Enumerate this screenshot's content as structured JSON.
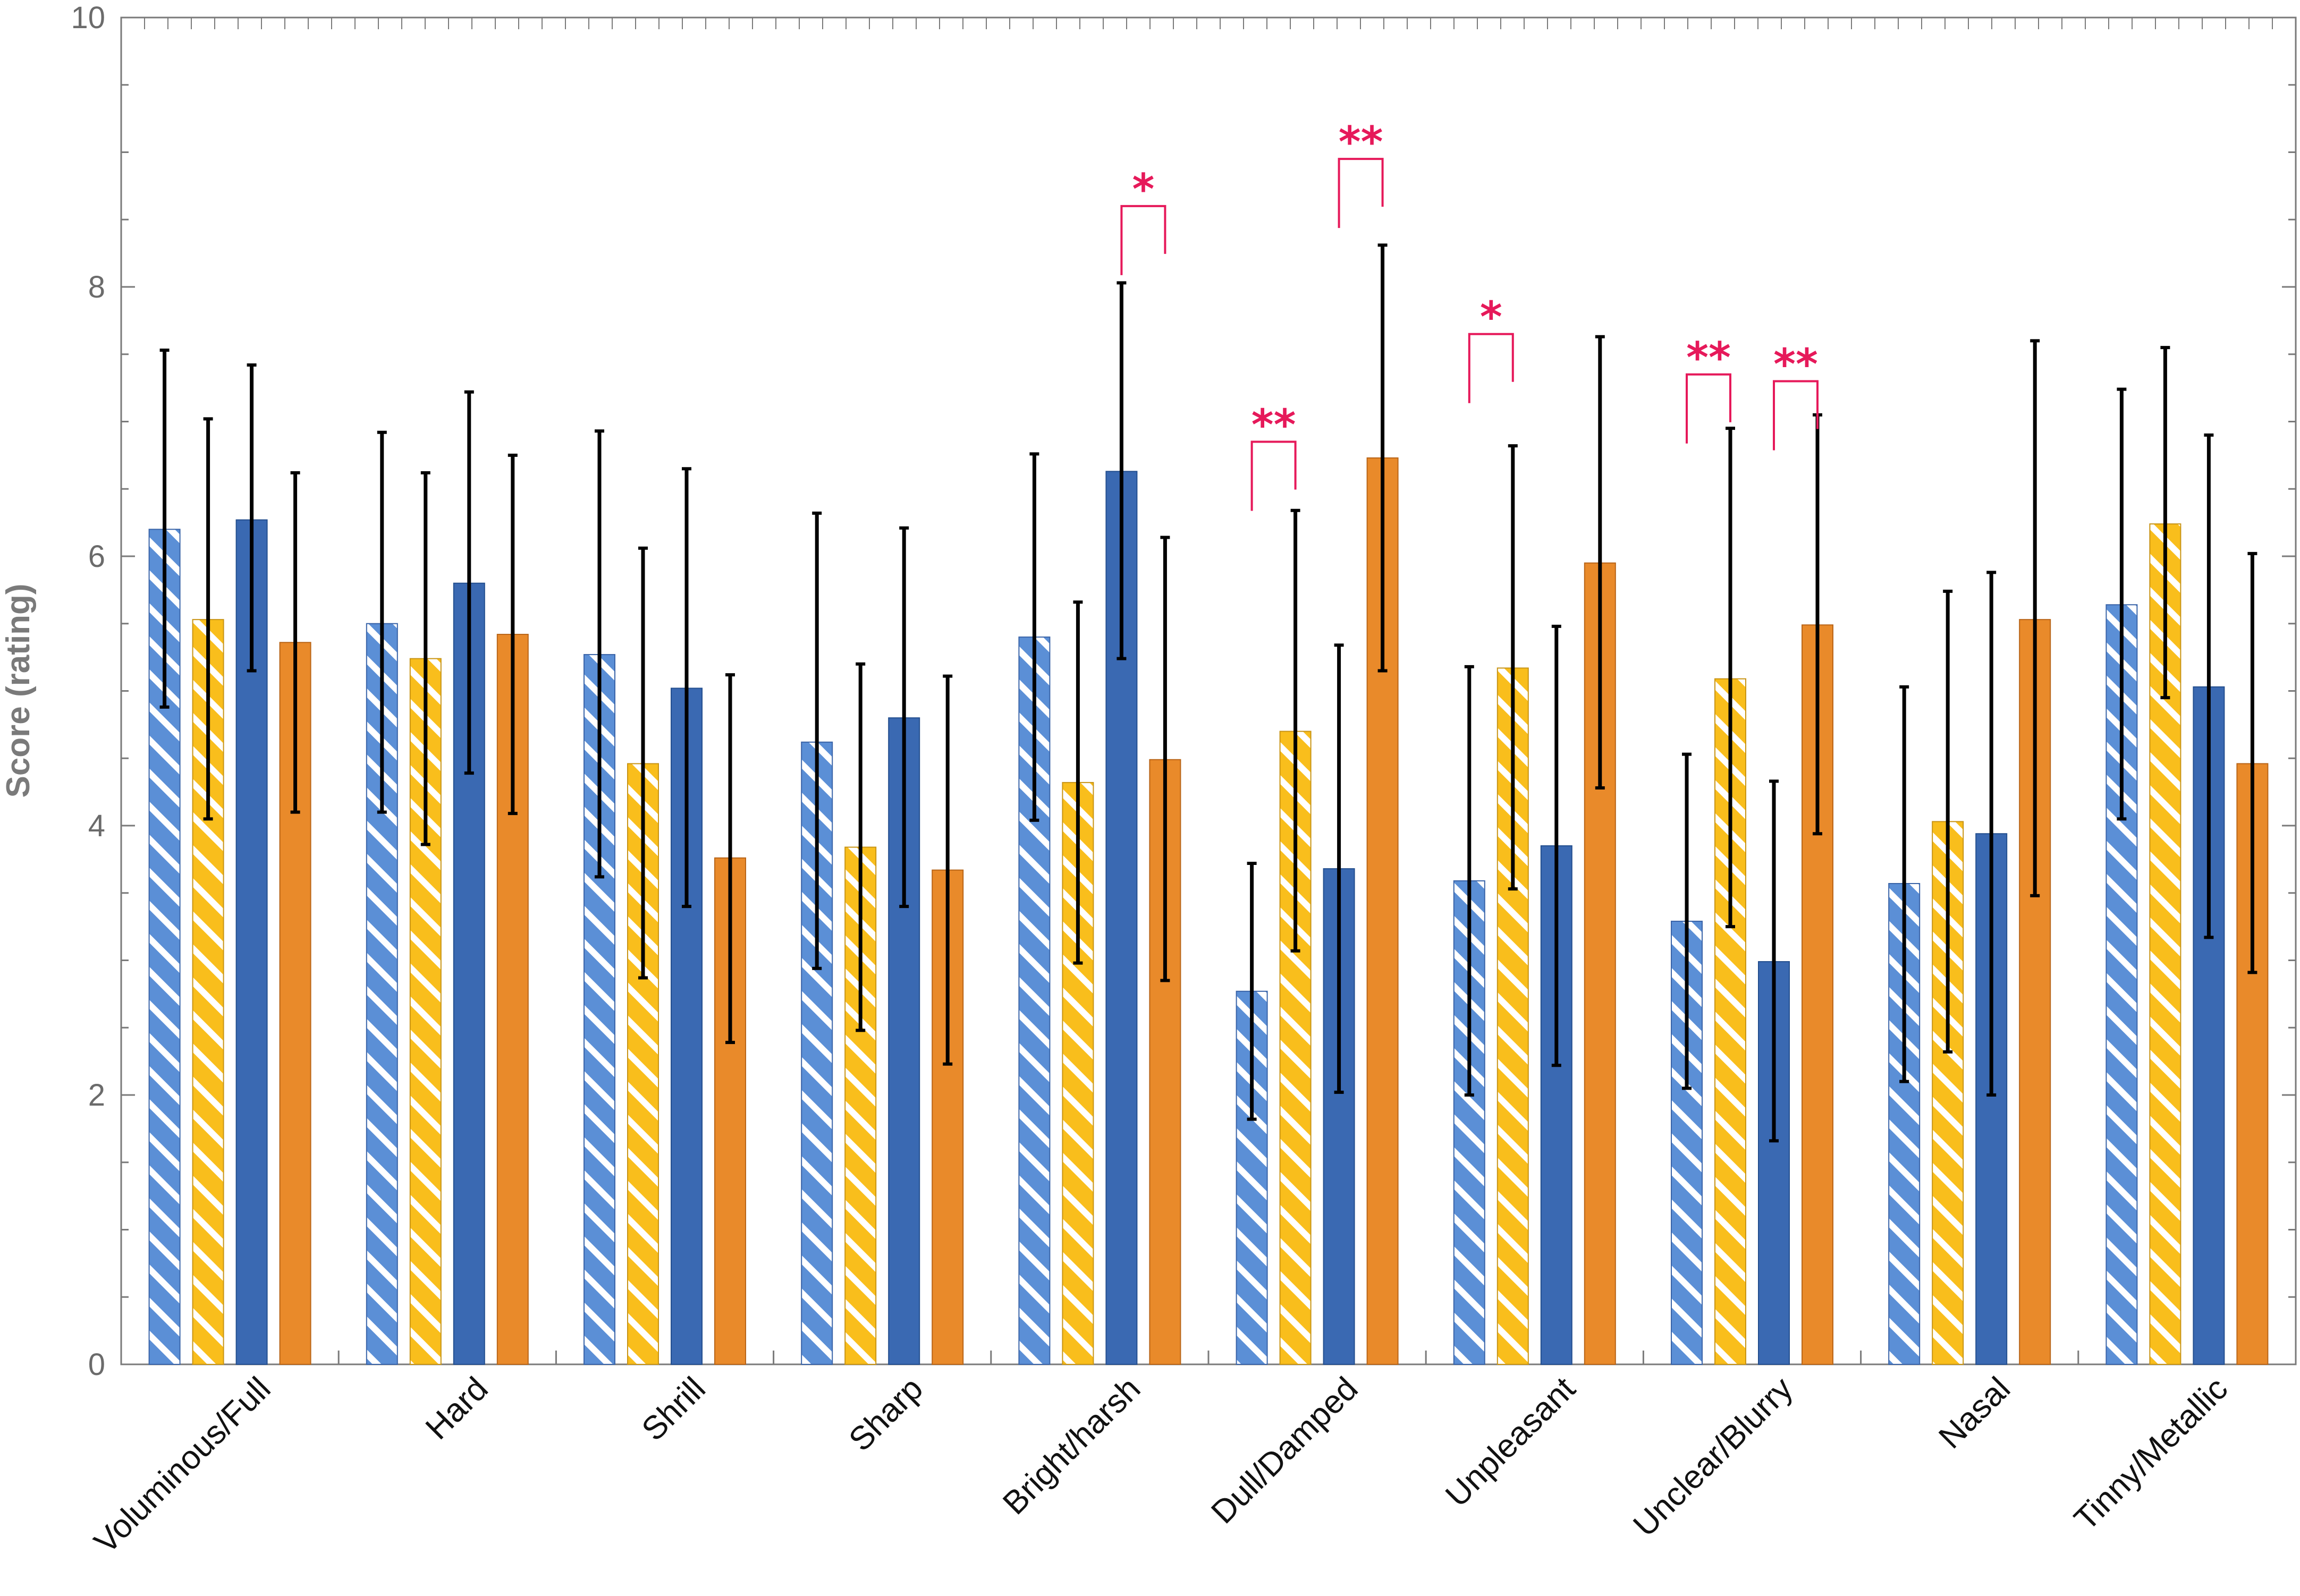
{
  "chart_data": {
    "type": "bar",
    "title": "",
    "xlabel": "",
    "ylabel": "Score (rating)",
    "ylim": [
      0,
      10
    ],
    "yticks": [
      0,
      2,
      4,
      6,
      8,
      10
    ],
    "grid": false,
    "categories": [
      "Voluminous/Full",
      "Hard",
      "Shrill",
      "Sharp",
      "Bright/harsh",
      "Dull/Damped",
      "Unpleasant",
      "Unclear/Blurry",
      "Nasal",
      "Tinny/Metallic"
    ],
    "series": [
      {
        "color": "#5b8fd6",
        "pattern": "hatched",
        "stroke": "#3a64a8",
        "values": [
          6.2,
          5.5,
          5.27,
          4.62,
          5.4,
          2.77,
          3.59,
          3.29,
          3.57,
          5.64
        ],
        "err_low": [
          4.88,
          4.1,
          3.62,
          2.94,
          4.04,
          1.82,
          2.0,
          2.05,
          2.1,
          4.05
        ],
        "err_high": [
          7.53,
          6.92,
          6.93,
          6.32,
          6.76,
          3.72,
          5.18,
          4.53,
          5.03,
          7.24
        ]
      },
      {
        "color": "#f9be1c",
        "pattern": "hatched",
        "stroke": "#c89415",
        "values": [
          5.53,
          5.24,
          4.46,
          3.84,
          4.32,
          4.7,
          5.17,
          5.09,
          4.03,
          6.24
        ],
        "err_low": [
          4.05,
          3.86,
          2.87,
          2.48,
          2.98,
          3.07,
          3.53,
          3.25,
          2.32,
          4.95
        ],
        "err_high": [
          7.02,
          6.62,
          6.06,
          5.2,
          5.66,
          6.34,
          6.82,
          6.95,
          5.74,
          7.55
        ]
      },
      {
        "color": "#3a69b2",
        "pattern": "solid",
        "stroke": "#244f8f",
        "values": [
          6.27,
          5.8,
          5.02,
          4.8,
          6.63,
          3.68,
          3.85,
          2.99,
          3.94,
          5.03
        ],
        "err_low": [
          5.15,
          4.39,
          3.4,
          3.4,
          5.24,
          2.02,
          2.22,
          1.66,
          2.0,
          3.17
        ],
        "err_high": [
          7.42,
          7.22,
          6.65,
          6.21,
          8.03,
          5.34,
          5.48,
          4.33,
          5.88,
          6.9
        ]
      },
      {
        "color": "#e98a2a",
        "pattern": "solid",
        "stroke": "#b96518",
        "values": [
          5.36,
          5.42,
          3.76,
          3.67,
          4.49,
          6.73,
          5.95,
          5.49,
          5.53,
          4.46
        ],
        "err_low": [
          4.1,
          4.09,
          2.39,
          2.23,
          2.85,
          5.15,
          4.28,
          3.94,
          3.48,
          2.91
        ],
        "err_high": [
          6.62,
          6.75,
          5.12,
          5.11,
          6.14,
          8.31,
          7.63,
          7.05,
          7.6,
          6.02
        ]
      }
    ],
    "significance": [
      {
        "category": 4,
        "from_series": 2,
        "to_series": 3,
        "level": 8.6,
        "label": "*"
      },
      {
        "category": 5,
        "from_series": 0,
        "to_series": 1,
        "level": 6.85,
        "label": "**"
      },
      {
        "category": 5,
        "from_series": 2,
        "to_series": 3,
        "level": 8.95,
        "label": "**"
      },
      {
        "category": 6,
        "from_series": 0,
        "to_series": 1,
        "level": 7.65,
        "label": "*"
      },
      {
        "category": 7,
        "from_series": 0,
        "to_series": 1,
        "level": 7.35,
        "label": "**"
      },
      {
        "category": 7,
        "from_series": 2,
        "to_series": 3,
        "level": 7.3,
        "label": "**"
      }
    ],
    "significance_color": "#e6195a"
  }
}
